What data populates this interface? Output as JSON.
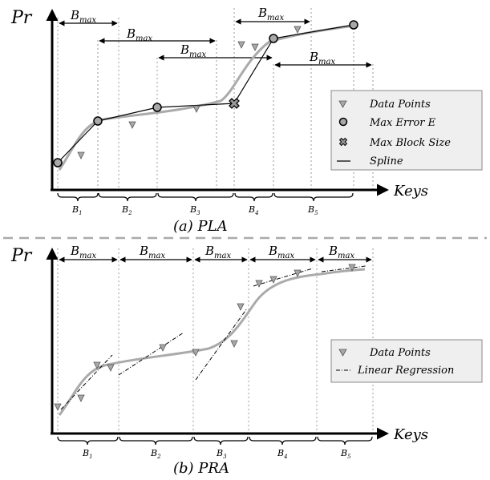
{
  "top": {
    "ylabel": "Pr",
    "xlabel": "Keys",
    "caption": "(a) PLA",
    "bmax": "B",
    "bmax_sub": "max",
    "blocks": [
      "B",
      "B",
      "B",
      "B",
      "B"
    ],
    "block_subs": [
      "1",
      "2",
      "3",
      "4",
      "5"
    ],
    "legend": [
      "Data Points",
      "Max Error E",
      "Max Block Size",
      "Spline"
    ]
  },
  "bottom": {
    "ylabel": "Pr",
    "xlabel": "Keys",
    "caption": "(b) PRA",
    "bmax": "B",
    "bmax_sub": "max",
    "blocks": [
      "B",
      "B",
      "B",
      "B",
      "B"
    ],
    "block_subs": [
      "1",
      "2",
      "3",
      "4",
      "5"
    ],
    "legend": [
      "Data Points",
      "Linear Regression"
    ]
  },
  "icons": {
    "data_point": "triangle-down-icon",
    "max_error": "circle-icon",
    "max_block_size": "x-cross-icon",
    "spline": "line-icon",
    "linear_regression": "dash-dot-line-icon"
  }
}
